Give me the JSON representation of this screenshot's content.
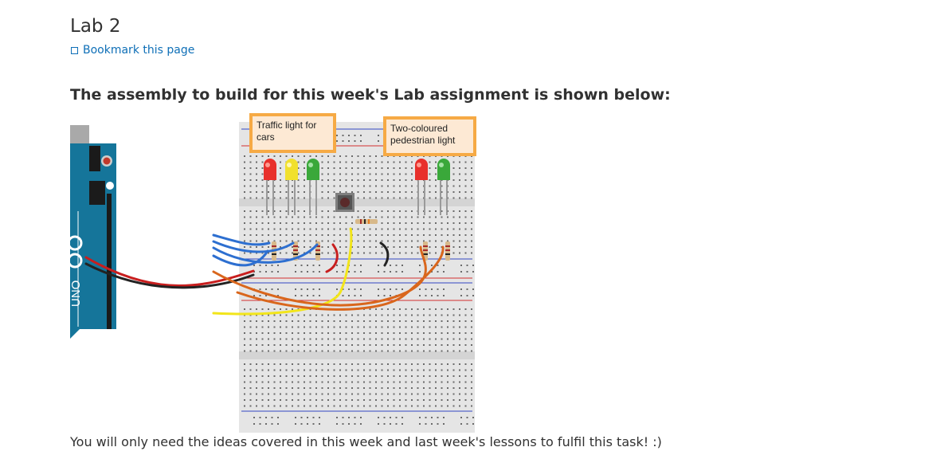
{
  "page": {
    "title": "Lab 2",
    "bookmark_label": "Bookmark this page",
    "intro": "The assembly to build for this week's Lab assignment is shown below:",
    "footer": "You will only need the ideas covered in this week and last week's lessons to fulfil this task! :)"
  },
  "figure": {
    "callout_cars": "Traffic light for cars",
    "callout_pedestrian": "Two-coloured pedestrian light",
    "board_label": "UNO",
    "colors": {
      "led_red": "#e8302b",
      "led_yellow": "#f1e02d",
      "led_green": "#3aa83a",
      "wire_blue": "#2d6fd0",
      "wire_red": "#c81e1e",
      "wire_black": "#222222",
      "wire_yellow": "#f2e51a",
      "wire_orange": "#d9661c",
      "arduino": "#15759a",
      "callout_border": "#f6aa45",
      "callout_fill": "#fde9d4"
    }
  }
}
